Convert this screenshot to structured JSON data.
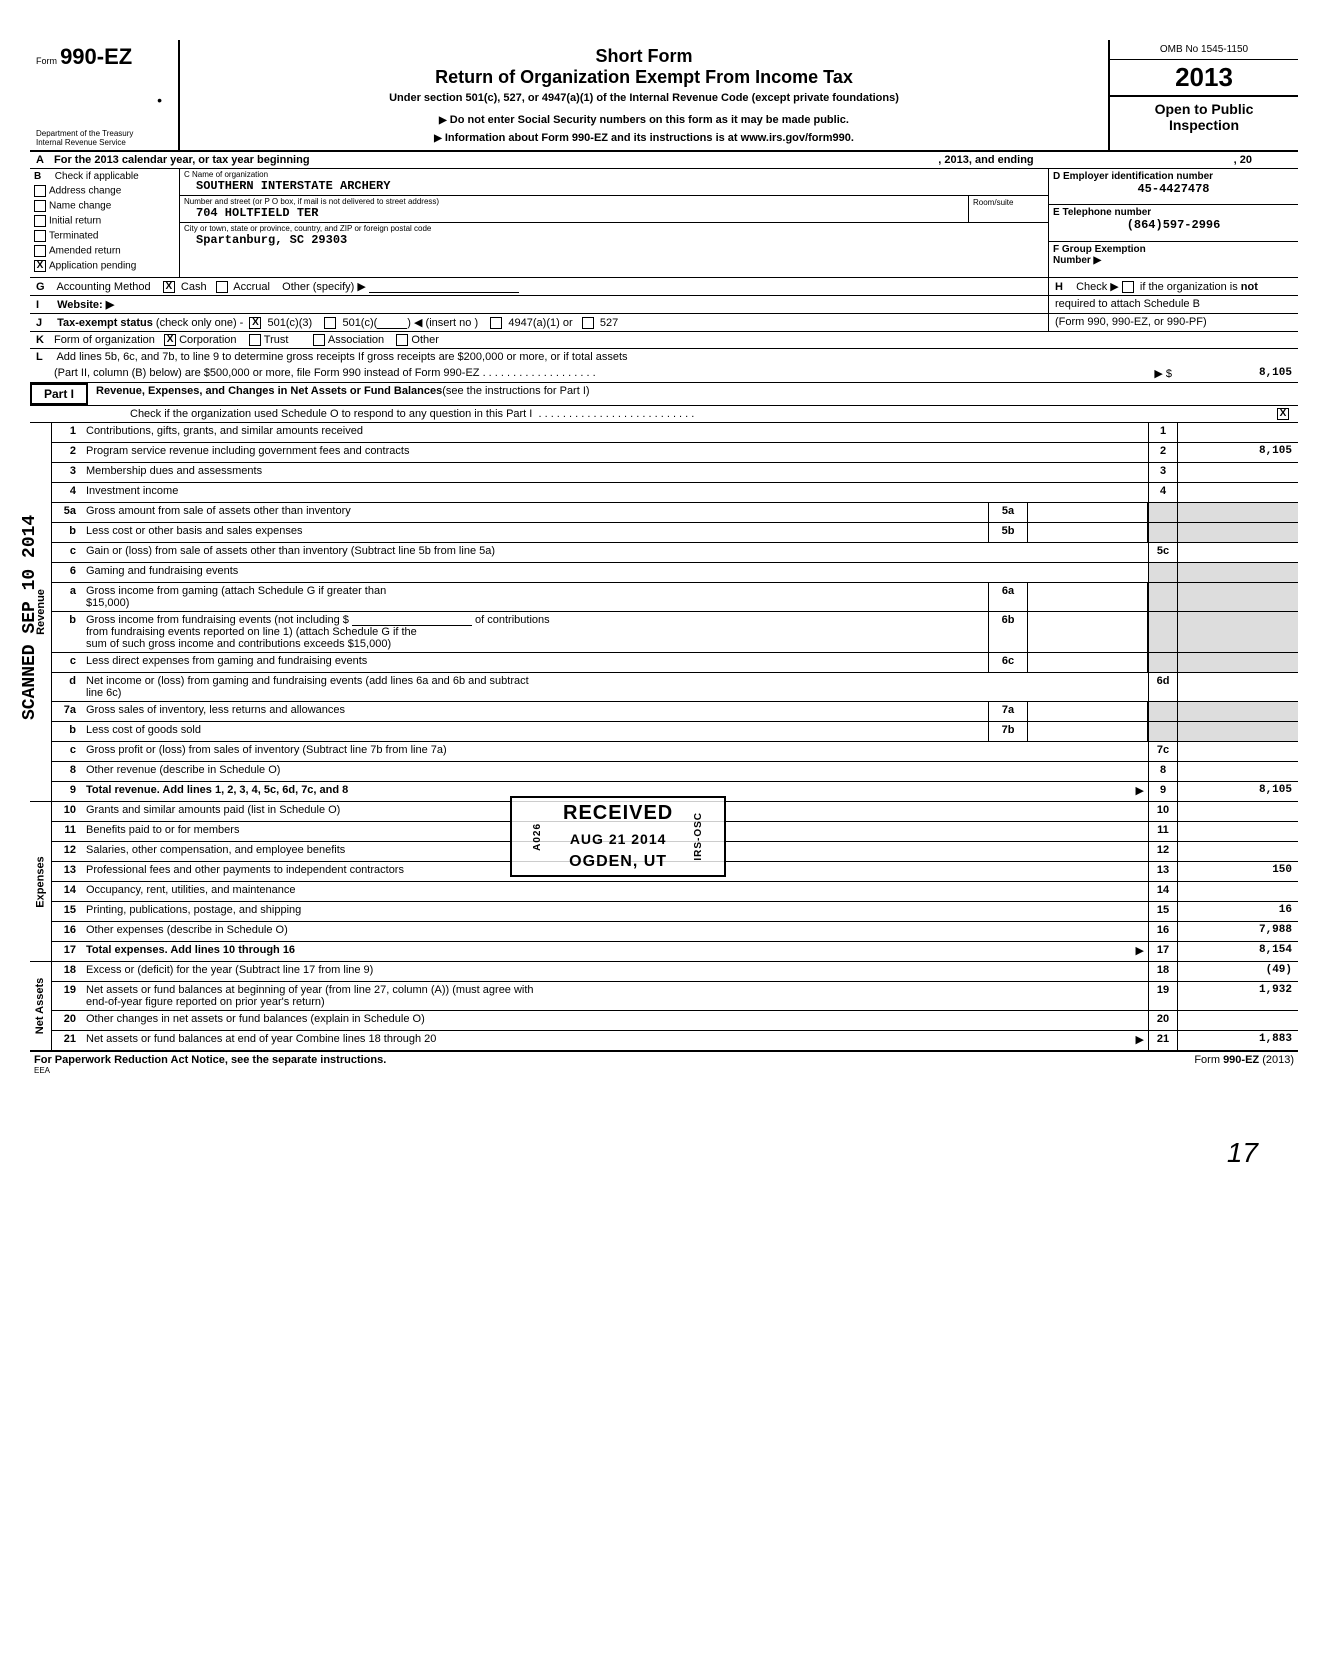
{
  "header": {
    "form_prefix": "Form",
    "form_number": "990-EZ",
    "title_line1": "Short Form",
    "title_line2": "Return of Organization Exempt From Income Tax",
    "subtitle": "Under section 501(c), 527, or 4947(a)(1) of the Internal Revenue Code (except private foundations)",
    "warn1": "Do not enter Social Security numbers on this form as it may be made public.",
    "warn2": "Information about Form 990-EZ and its instructions is at www.irs.gov/form990.",
    "dept": "Department of the Treasury",
    "irs": "Internal Revenue Service",
    "omb": "OMB No 1545-1150",
    "year": "2013",
    "open1": "Open to Public",
    "open2": "Inspection"
  },
  "lineA": {
    "prefix": "A",
    "text1": "For the 2013 calendar year, or tax year beginning",
    "text2": ", 2013, and ending",
    "text3": ", 20"
  },
  "sectionB": {
    "letter": "B",
    "label": "Check if applicable",
    "items": [
      {
        "label": "Address change",
        "checked": false
      },
      {
        "label": "Name change",
        "checked": false
      },
      {
        "label": "Initial return",
        "checked": false
      },
      {
        "label": "Terminated",
        "checked": false
      },
      {
        "label": "Amended return",
        "checked": false
      },
      {
        "label": "Application pending",
        "checked": true
      }
    ]
  },
  "sectionC": {
    "c_label": "C  Name of organization",
    "org_name": "SOUTHERN INTERSTATE ARCHERY",
    "street_label": "Number and street (or P O  box, if mail is not delivered to street address)",
    "room_label": "Room/suite",
    "street": "704 HOLTFIELD TER",
    "city_label": "City or town, state or province, country, and ZIP or foreign postal code",
    "city": "Spartanburg, SC 29303"
  },
  "sectionDEF": {
    "d_label": "D  Employer identification number",
    "d_val": "45-4427478",
    "e_label": "E  Telephone number",
    "e_val": "(864)597-2996",
    "f_label": "F  Group Exemption",
    "f_label2": "Number  ▶"
  },
  "lineG": {
    "letter": "G",
    "label": "Accounting Method",
    "cash": "Cash",
    "accrual": "Accrual",
    "other": "Other (specify) ▶",
    "cash_checked": true
  },
  "lineH": {
    "letter": "H",
    "text1": "Check ▶",
    "text2": "if the organization is",
    "text3": "not",
    "text4": "required to attach Schedule B",
    "text5": "(Form 990, 990-EZ, or 990-PF)"
  },
  "lineI": {
    "letter": "I",
    "label": "Website: ▶"
  },
  "lineJ": {
    "letter": "J",
    "label": "Tax-exempt status",
    "sub": "(check only one) -",
    "opt1": "501(c)(3)",
    "opt1_checked": true,
    "opt2": "501(c)(",
    "opt2_suffix": ")  ◀ (insert no )",
    "opt3": "4947(a)(1) or",
    "opt4": "527"
  },
  "lineK": {
    "letter": "K",
    "label": "Form of organization",
    "opts": [
      {
        "label": "Corporation",
        "checked": true
      },
      {
        "label": "Trust",
        "checked": false
      },
      {
        "label": "Association",
        "checked": false
      },
      {
        "label": "Other",
        "checked": false
      }
    ]
  },
  "lineL": {
    "letter": "L",
    "text1": "Add lines 5b, 6c, and 7b, to line 9 to determine gross receipts  If gross receipts are $200,000 or more, or if total assets",
    "text2": "(Part II, column (B) below) are $500,000 or more, file Form 990 instead of Form 990-EZ",
    "arrow": "▶ $",
    "amount": "8,105"
  },
  "part1": {
    "label": "Part I",
    "title": "Revenue, Expenses, and Changes in Net Assets or Fund Balances",
    "title_suffix": "(see the instructions for Part I)",
    "check_line": "Check if the organization used Schedule O to respond to any question in this Part I",
    "check_checked": true
  },
  "groups": {
    "revenue": "Revenue",
    "expenses": "Expenses",
    "netassets": "Net Assets"
  },
  "rows": [
    {
      "n": "1",
      "desc": "Contributions, gifts, grants, and similar amounts received",
      "box": "1",
      "amt": ""
    },
    {
      "n": "2",
      "desc": "Program service revenue including government fees and contracts",
      "box": "2",
      "amt": "8,105"
    },
    {
      "n": "3",
      "desc": "Membership dues and assessments",
      "box": "3",
      "amt": ""
    },
    {
      "n": "4",
      "desc": "Investment income",
      "box": "4",
      "amt": ""
    },
    {
      "n": "5a",
      "desc": "Gross amount from sale of assets other than inventory",
      "sub": "5a"
    },
    {
      "n": "b",
      "desc": "Less  cost or other basis and sales expenses",
      "sub": "5b"
    },
    {
      "n": "c",
      "desc": "Gain or (loss) from sale of assets other than inventory (Subtract line 5b from line 5a)",
      "box": "5c",
      "amt": ""
    },
    {
      "n": "6",
      "desc": "Gaming and fundraising events",
      "grey_right": true
    },
    {
      "n": "a",
      "desc": "Gross income from gaming (attach Schedule G if greater than",
      "desc2": "$15,000)",
      "sub": "6a"
    },
    {
      "n": "b",
      "desc": "Gross income from fundraising events (not including $",
      "desc_mid": "of contributions",
      "desc2": "from fundraising events reported on line 1) (attach Schedule G if the",
      "desc3": "sum of such gross income and contributions exceeds $15,000)",
      "sub": "6b"
    },
    {
      "n": "c",
      "desc": "Less  direct expenses from gaming and fundraising events",
      "sub": "6c"
    },
    {
      "n": "d",
      "desc": "Net income or (loss) from gaming and fundraising events (add lines 6a and 6b and subtract",
      "desc2": "line 6c)",
      "box": "6d",
      "amt": ""
    },
    {
      "n": "7a",
      "desc": "Gross sales of inventory, less returns and allowances",
      "sub": "7a"
    },
    {
      "n": "b",
      "desc": "Less  cost of goods sold",
      "sub": "7b"
    },
    {
      "n": "c",
      "desc": "Gross profit or (loss) from sales of inventory (Subtract line 7b from line 7a)",
      "box": "7c",
      "amt": ""
    },
    {
      "n": "8",
      "desc": "Other revenue (describe in Schedule O)",
      "box": "8",
      "amt": ""
    },
    {
      "n": "9",
      "desc": "Total revenue.  Add lines 1, 2, 3, 4, 5c, 6d, 7c, and 8",
      "box": "9",
      "amt": "8,105",
      "bold": true,
      "arrow": true
    }
  ],
  "expense_rows": [
    {
      "n": "10",
      "desc": "Grants and similar amounts paid (list in Schedule O)",
      "box": "10",
      "amt": ""
    },
    {
      "n": "11",
      "desc": "Benefits paid to or for members",
      "box": "11",
      "amt": ""
    },
    {
      "n": "12",
      "desc": "Salaries, other compensation, and employee benefits",
      "box": "12",
      "amt": ""
    },
    {
      "n": "13",
      "desc": "Professional fees and other payments to independent contractors",
      "box": "13",
      "amt": "150"
    },
    {
      "n": "14",
      "desc": "Occupancy, rent, utilities, and maintenance",
      "box": "14",
      "amt": ""
    },
    {
      "n": "15",
      "desc": "Printing, publications, postage, and shipping",
      "box": "15",
      "amt": "16"
    },
    {
      "n": "16",
      "desc": "Other expenses (describe in Schedule O)",
      "box": "16",
      "amt": "7,988"
    },
    {
      "n": "17",
      "desc": "Total expenses.  Add lines 10 through 16",
      "box": "17",
      "amt": "8,154",
      "bold": true,
      "arrow": true
    }
  ],
  "netasset_rows": [
    {
      "n": "18",
      "desc": "Excess or (deficit) for the year (Subtract line 17 from line 9)",
      "box": "18",
      "amt": "(49)"
    },
    {
      "n": "19",
      "desc": "Net assets or fund balances at beginning of year (from line 27, column (A)) (must agree with",
      "desc2": "end-of-year figure reported on prior year's return)",
      "box": "19",
      "amt": "1,932"
    },
    {
      "n": "20",
      "desc": "Other changes in net assets or fund balances (explain in Schedule O)",
      "box": "20",
      "amt": ""
    },
    {
      "n": "21",
      "desc": "Net assets or fund balances at end of year  Combine lines 18 through 20",
      "box": "21",
      "amt": "1,883",
      "arrow": true
    }
  ],
  "stamp": {
    "line1": "RECEIVED",
    "line2": "AUG 21 2014",
    "line3": "OGDEN, UT",
    "side_left": "A026",
    "side_right": "IRS-OSC"
  },
  "scanned": "SCANNED  SEP 10 2014",
  "footer": {
    "left": "For Paperwork Reduction Act Notice, see the separate instructions.",
    "eea": "EEA",
    "right": "Form 990-EZ (2013)"
  },
  "page_number": "17"
}
